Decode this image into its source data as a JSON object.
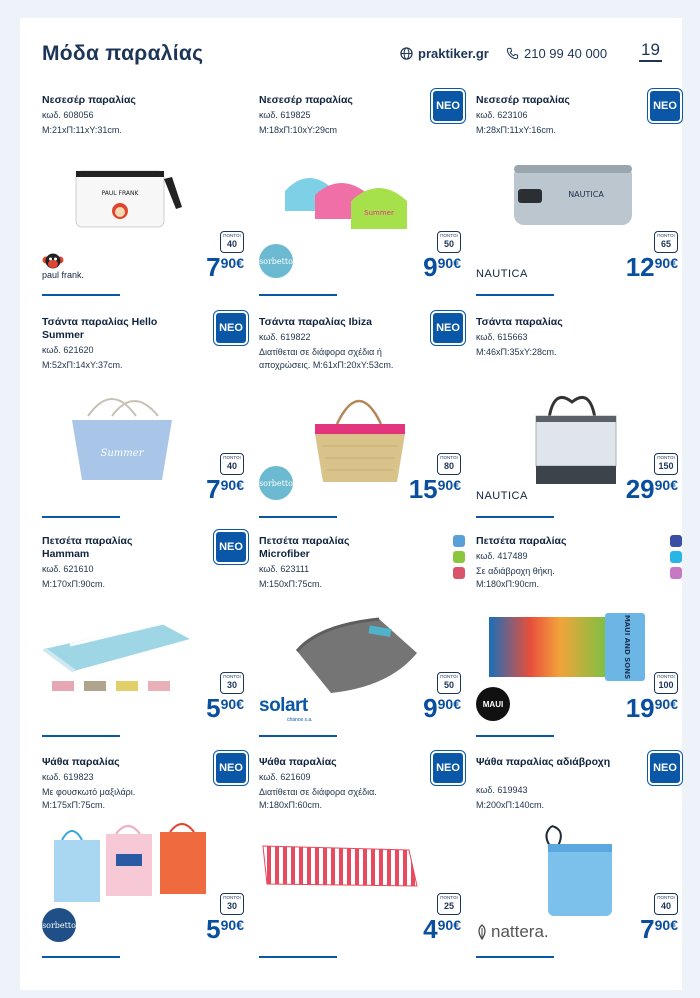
{
  "header": {
    "title": "Μόδα παραλίας",
    "website": "praktiker.gr",
    "phone": "210 99 40 000",
    "page_number": "19"
  },
  "labels": {
    "new_badge": "ΝΕΟ",
    "points_label": "ΠΟΝΤΟΙ"
  },
  "products": [
    {
      "name": "Νεσεσέρ παραλίας",
      "code": "κωδ. 608056",
      "details": "Μ:21xΠ:11xΥ:31cm.",
      "is_new": false,
      "points": "40",
      "price_int": "7",
      "price_dec": "90€",
      "brand": "paul frank.",
      "image_text": "PAUL FRANK"
    },
    {
      "name": "Νεσεσέρ παραλίας",
      "code": "κωδ. 619825",
      "details": "Μ:18xΠ:10xΥ:29cm",
      "is_new": true,
      "points": "50",
      "price_int": "9",
      "price_dec": "90€",
      "brand": "sorbetto"
    },
    {
      "name": "Νεσεσέρ παραλίας",
      "code": "κωδ. 623106",
      "details": "Μ:28xΠ:11xΥ:16cm.",
      "is_new": true,
      "points": "65",
      "price_int": "12",
      "price_dec": "90€",
      "brand": "NAUTICA",
      "image_text": "NAUTICA"
    },
    {
      "name": "Τσάντα παραλίας Hello Summer",
      "code": "κωδ. 621620",
      "details": "Μ:52xΠ:14xΥ:37cm.",
      "is_new": true,
      "points": "40",
      "price_int": "7",
      "price_dec": "90€",
      "brand": "",
      "image_text": "Summer"
    },
    {
      "name": "Τσάντα παραλίας Ibiza",
      "code": "κωδ. 619822",
      "details": "Διατίθεται σε διάφορα σχέδια ή αποχρώσεις. Μ:61xΠ:20xΥ:53cm.",
      "is_new": true,
      "points": "80",
      "price_int": "15",
      "price_dec": "90€",
      "brand": "sorbetto"
    },
    {
      "name": "Τσάντα παραλίας",
      "code": "κωδ. 615663",
      "details": "Μ:46xΠ:35xΥ:28cm.",
      "is_new": false,
      "points": "150",
      "price_int": "29",
      "price_dec": "90€",
      "brand": "NAUTICA"
    },
    {
      "name": "Πετσέτα παραλίας Hammam",
      "code": "κωδ. 621610",
      "details": "Μ:170xΠ:90cm.",
      "is_new": true,
      "points": "30",
      "price_int": "5",
      "price_dec": "90€",
      "brand": ""
    },
    {
      "name": "Πετσέτα παραλίας Microfiber",
      "code": "κωδ. 623111",
      "details": "Μ:150xΠ:75cm.",
      "is_new": false,
      "swatches": [
        "#5aa0d8",
        "#8cc63f",
        "#d9546b"
      ],
      "points": "50",
      "price_int": "9",
      "price_dec": "90€",
      "brand": "solart",
      "brand_sub": "chanos s.a."
    },
    {
      "name": "Πετσέτα παραλίας",
      "code": "κωδ. 417489",
      "details": "Σε αδιάβροχη θήκη. Μ:180xΠ:90cm.",
      "is_new": false,
      "swatches": [
        "#3b4ea3",
        "#28b6e6",
        "#c67ac4"
      ],
      "points": "100",
      "price_int": "19",
      "price_dec": "90€",
      "brand": "MAUI",
      "image_text": "MAUI AND SONS"
    },
    {
      "name": "Ψάθα παραλίας",
      "code": "κωδ. 619823",
      "details": "Με φουσκωτό μαξιλάρι. Μ:175xΠ:75cm.",
      "is_new": true,
      "points": "30",
      "price_int": "5",
      "price_dec": "90€",
      "brand": "sorbetto"
    },
    {
      "name": "Ψάθα παραλίας",
      "code": "κωδ. 621609",
      "details": "Διατίθεται σε διάφορα σχέδια. Μ:180xΠ:60cm.",
      "is_new": true,
      "points": "25",
      "price_int": "4",
      "price_dec": "90€",
      "brand": ""
    },
    {
      "name": "Ψάθα παραλίας αδιάβροχη",
      "code": "κωδ. 619943",
      "details": "Μ:200xΠ:140cm.",
      "is_new": true,
      "points": "40",
      "price_int": "7",
      "price_dec": "90€",
      "brand": "nattera."
    }
  ]
}
